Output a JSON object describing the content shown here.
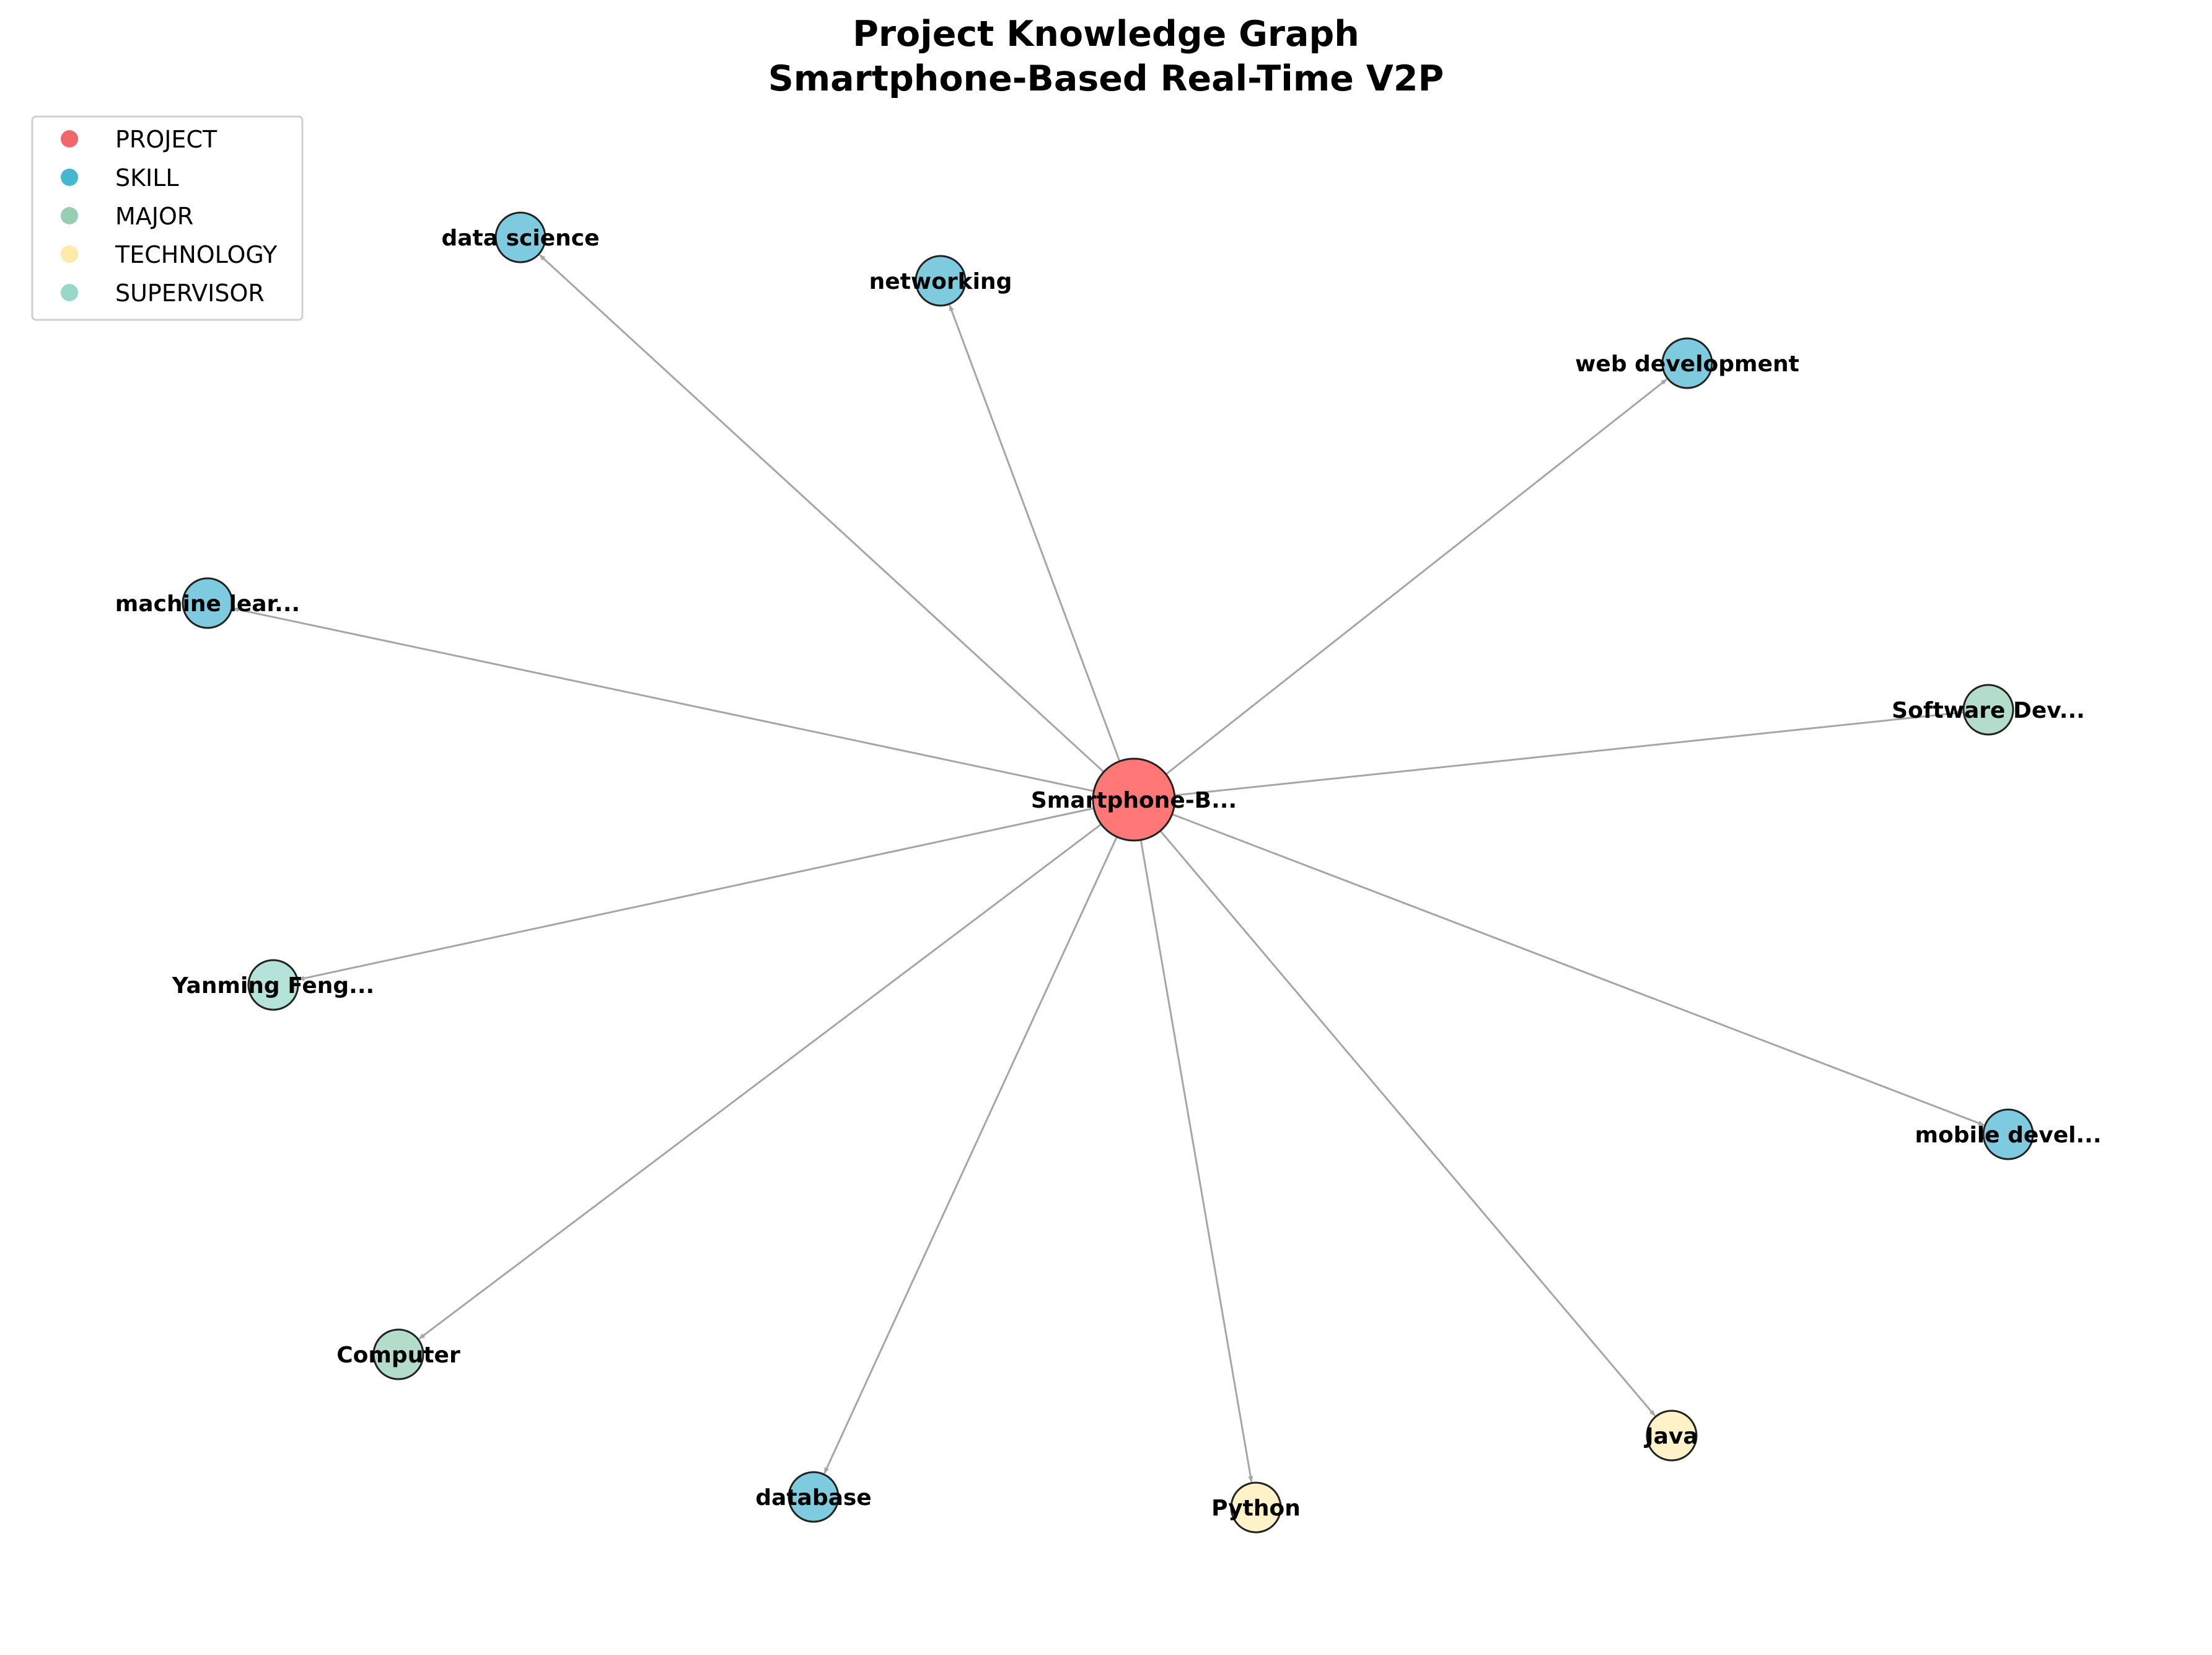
{
  "title_line1": "Project Knowledge Graph",
  "title_line2": "Smartphone-Based Real-Time V2P",
  "legend": [
    {
      "label": "PROJECT",
      "color": "#f0686a"
    },
    {
      "label": "SKILL",
      "color": "#45b7d1"
    },
    {
      "label": "MAJOR",
      "color": "#96ceb4"
    },
    {
      "label": "TECHNOLOGY",
      "color": "#ffeaa7"
    },
    {
      "label": "SUPERVISOR",
      "color": "#98d8c8"
    }
  ],
  "center_node": {
    "label": "Smartphone-B...",
    "type": "PROJECT",
    "color": "#ff7777"
  },
  "nodes": [
    {
      "label": "data science",
      "type": "SKILL",
      "color": "#7ecadf"
    },
    {
      "label": "networking",
      "type": "SKILL",
      "color": "#7ecadf"
    },
    {
      "label": "web development",
      "type": "SKILL",
      "color": "#7ecadf"
    },
    {
      "label": "machine lear...",
      "type": "SKILL",
      "color": "#7ecadf"
    },
    {
      "label": "Software Dev...",
      "type": "MAJOR",
      "color": "#b3dccb"
    },
    {
      "label": "Yanming Feng...",
      "type": "SUPERVISOR",
      "color": "#b4e3d9"
    },
    {
      "label": "mobile devel...",
      "type": "SKILL",
      "color": "#7ecadf"
    },
    {
      "label": "Computer",
      "type": "MAJOR",
      "color": "#b3dccb"
    },
    {
      "label": "Java",
      "type": "TECHNOLOGY",
      "color": "#fff1c8"
    },
    {
      "label": "database",
      "type": "SKILL",
      "color": "#7ecadf"
    },
    {
      "label": "Python",
      "type": "TECHNOLOGY",
      "color": "#fff1c8"
    }
  ],
  "edge_color": "#a6a6a6"
}
